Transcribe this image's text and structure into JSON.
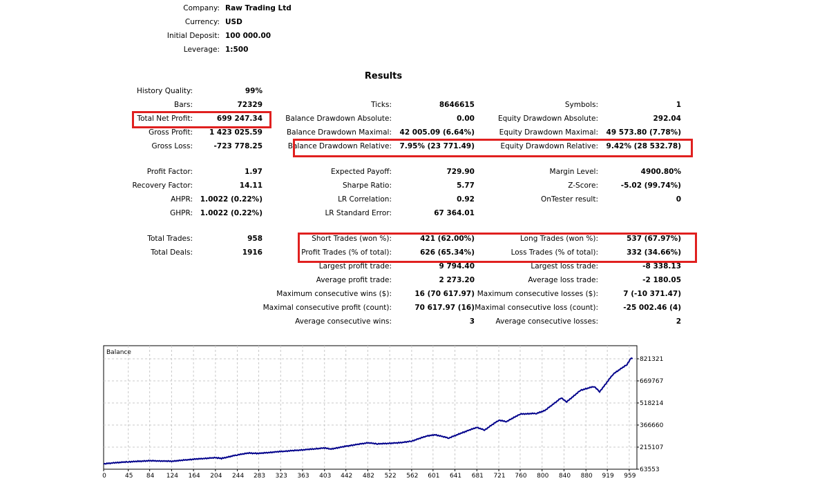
{
  "header": {
    "items": [
      {
        "label": "Company:",
        "value": "Raw Trading Ltd"
      },
      {
        "label": "Currency:",
        "value": "USD"
      },
      {
        "label": "Initial Deposit:",
        "value": "100 000.00"
      },
      {
        "label": "Leverage:",
        "value": "1:500"
      }
    ]
  },
  "results": {
    "title": "Results",
    "groups": [
      [
        [
          {
            "label": "History Quality:",
            "value": "99%"
          },
          null,
          null
        ],
        [
          {
            "label": "Bars:",
            "value": "72329"
          },
          {
            "label": "Ticks:",
            "value": "8646615"
          },
          {
            "label": "Symbols:",
            "value": "1"
          }
        ],
        [
          {
            "label": "Total Net Profit:",
            "value": "699 247.34"
          },
          {
            "label": "Balance Drawdown Absolute:",
            "value": "0.00"
          },
          {
            "label": "Equity Drawdown Absolute:",
            "value": "292.04"
          }
        ],
        [
          {
            "label": "Gross Profit:",
            "value": "1 423 025.59"
          },
          {
            "label": "Balance Drawdown Maximal:",
            "value": "42 005.09 (6.64%)"
          },
          {
            "label": "Equity Drawdown Maximal:",
            "value": "49 573.80 (7.78%)"
          }
        ],
        [
          {
            "label": "Gross Loss:",
            "value": "-723 778.25"
          },
          {
            "label": "Balance Drawdown Relative:",
            "value": "7.95% (23 771.49)"
          },
          {
            "label": "Equity Drawdown Relative:",
            "value": "9.42% (28 532.78)"
          }
        ]
      ],
      [
        [
          {
            "label": "Profit Factor:",
            "value": "1.97"
          },
          {
            "label": "Expected Payoff:",
            "value": "729.90"
          },
          {
            "label": "Margin Level:",
            "value": "4900.80%"
          }
        ],
        [
          {
            "label": "Recovery Factor:",
            "value": "14.11"
          },
          {
            "label": "Sharpe Ratio:",
            "value": "5.77"
          },
          {
            "label": "Z-Score:",
            "value": "-5.02 (99.74%)"
          }
        ],
        [
          {
            "label": "AHPR:",
            "value": "1.0022 (0.22%)"
          },
          {
            "label": "LR Correlation:",
            "value": "0.92"
          },
          {
            "label": "OnTester result:",
            "value": "0"
          }
        ],
        [
          {
            "label": "GHPR:",
            "value": "1.0022 (0.22%)"
          },
          {
            "label": "LR Standard Error:",
            "value": "67 364.01"
          },
          null
        ]
      ],
      [
        [
          {
            "label": "Total Trades:",
            "value": "958"
          },
          {
            "label": "Short Trades (won %):",
            "value": "421 (62.00%)"
          },
          {
            "label": "Long Trades (won %):",
            "value": "537 (67.97%)"
          }
        ],
        [
          {
            "label": "Total Deals:",
            "value": "1916"
          },
          {
            "label": "Profit Trades (% of total):",
            "value": "626 (65.34%)"
          },
          {
            "label": "Loss Trades (% of total):",
            "value": "332 (34.66%)"
          }
        ],
        [
          null,
          {
            "label": "Largest profit trade:",
            "value": "9 794.40"
          },
          {
            "label": "Largest loss trade:",
            "value": "-8 338.13"
          }
        ],
        [
          null,
          {
            "label": "Average profit trade:",
            "value": "2 273.20"
          },
          {
            "label": "Average loss trade:",
            "value": "-2 180.05"
          }
        ],
        [
          null,
          {
            "label": "Maximum consecutive wins ($):",
            "value": "16 (70 617.97)"
          },
          {
            "label": "Maximum consecutive losses ($):",
            "value": "7 (-10 371.47)"
          }
        ],
        [
          null,
          {
            "label": "Maximal consecutive profit (count):",
            "value": "70 617.97 (16)"
          },
          {
            "label": "Maximal consecutive loss (count):",
            "value": "-25 002.46 (4)"
          }
        ],
        [
          null,
          {
            "label": "Average consecutive wins:",
            "value": "3"
          },
          {
            "label": "Average consecutive losses:",
            "value": "2"
          }
        ]
      ]
    ]
  },
  "colors": {
    "highlight": "#e0201f",
    "line": "#00008b",
    "grid": "#c8c8c8"
  },
  "chart_data": {
    "type": "line",
    "title": "Balance",
    "xlabel": "",
    "ylabel": "",
    "x_ticks": [
      "0",
      "45",
      "84",
      "124",
      "164",
      "204",
      "244",
      "283",
      "323",
      "363",
      "403",
      "442",
      "482",
      "522",
      "562",
      "601",
      "641",
      "681",
      "721",
      "760",
      "800",
      "840",
      "880",
      "919",
      "959"
    ],
    "y_ticks": [
      "63553",
      "215107",
      "366660",
      "518214",
      "669767",
      "821321"
    ],
    "xlim": [
      0,
      973
    ],
    "ylim": [
      63553,
      821321
    ],
    "series": [
      {
        "name": "Balance",
        "x": [
          0,
          20,
          45,
          84,
          124,
          164,
          204,
          215,
          244,
          264,
          283,
          323,
          363,
          403,
          415,
          442,
          482,
          500,
          540,
          562,
          590,
          605,
          630,
          650,
          681,
          695,
          721,
          735,
          760,
          790,
          805,
          835,
          845,
          870,
          895,
          905,
          930,
          955,
          962,
          965
        ],
        "y": [
          100000,
          108000,
          114000,
          121800,
          118000,
          132000,
          142600,
          137000,
          162000,
          174000,
          172000,
          185000,
          196000,
          209000,
          202000,
          221300,
          245000,
          237000,
          245000,
          256000,
          292000,
          300000,
          277000,
          308000,
          351000,
          332000,
          400000,
          390000,
          442000,
          447000,
          466000,
          553000,
          526000,
          605000,
          632000,
          595000,
          718000,
          782000,
          826000,
          821000
        ]
      }
    ]
  }
}
